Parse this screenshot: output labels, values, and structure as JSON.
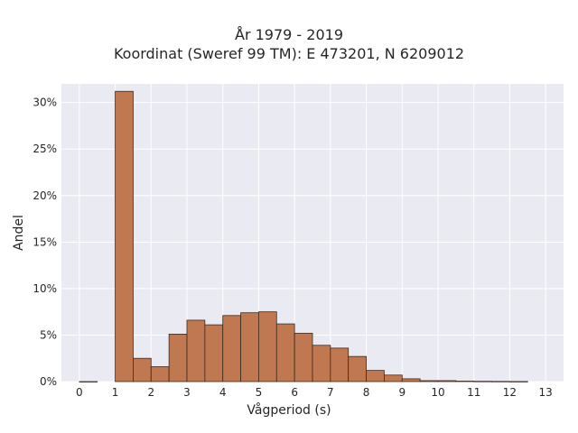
{
  "chart_data": {
    "type": "bar",
    "title": "År 1979 - 2019",
    "subtitle": "Koordinat (Sweref 99 TM): E 473201, N 6209012",
    "xlabel": "Vågperiod (s)",
    "ylabel": "Andel",
    "xlim": [
      -0.5,
      13.5
    ],
    "ylim": [
      0,
      32
    ],
    "x_ticks": [
      0,
      1,
      2,
      3,
      4,
      5,
      6,
      7,
      8,
      9,
      10,
      11,
      12,
      13
    ],
    "x_tick_labels": [
      "0",
      "1",
      "2",
      "3",
      "4",
      "5",
      "6",
      "7",
      "8",
      "9",
      "10",
      "11",
      "12",
      "13"
    ],
    "y_ticks": [
      0,
      5,
      10,
      15,
      20,
      25,
      30
    ],
    "y_tick_labels": [
      "0%",
      "5%",
      "10%",
      "15%",
      "20%",
      "25%",
      "30%"
    ],
    "bin_width": 0.5,
    "bins": [
      {
        "x0": 0.0,
        "x1": 0.5,
        "value": 0.0
      },
      {
        "x0": 1.0,
        "x1": 1.5,
        "value": 31.2
      },
      {
        "x0": 1.5,
        "x1": 2.0,
        "value": 2.5
      },
      {
        "x0": 2.0,
        "x1": 2.5,
        "value": 1.6
      },
      {
        "x0": 2.5,
        "x1": 3.0,
        "value": 5.1
      },
      {
        "x0": 3.0,
        "x1": 3.5,
        "value": 6.6
      },
      {
        "x0": 3.5,
        "x1": 4.0,
        "value": 6.1
      },
      {
        "x0": 4.0,
        "x1": 4.5,
        "value": 7.1
      },
      {
        "x0": 4.5,
        "x1": 5.0,
        "value": 7.4
      },
      {
        "x0": 5.0,
        "x1": 5.5,
        "value": 7.5
      },
      {
        "x0": 5.5,
        "x1": 6.0,
        "value": 6.2
      },
      {
        "x0": 6.0,
        "x1": 6.5,
        "value": 5.2
      },
      {
        "x0": 6.5,
        "x1": 7.0,
        "value": 3.9
      },
      {
        "x0": 7.0,
        "x1": 7.5,
        "value": 3.6
      },
      {
        "x0": 7.5,
        "x1": 8.0,
        "value": 2.7
      },
      {
        "x0": 8.0,
        "x1": 8.5,
        "value": 1.2
      },
      {
        "x0": 8.5,
        "x1": 9.0,
        "value": 0.7
      },
      {
        "x0": 9.0,
        "x1": 9.5,
        "value": 0.3
      },
      {
        "x0": 9.5,
        "x1": 10.0,
        "value": 0.1
      },
      {
        "x0": 10.0,
        "x1": 10.5,
        "value": 0.1
      },
      {
        "x0": 10.5,
        "x1": 11.0,
        "value": 0.05
      },
      {
        "x0": 11.0,
        "x1": 11.5,
        "value": 0.03
      },
      {
        "x0": 11.5,
        "x1": 12.0,
        "value": 0.02
      },
      {
        "x0": 12.0,
        "x1": 12.5,
        "value": 0.01
      }
    ],
    "grid": true,
    "colors": {
      "bar_fill": "#c07850",
      "bar_edge": "#3d2a1f",
      "plot_background": "#eaeaf2",
      "grid": "#ffffff"
    }
  }
}
